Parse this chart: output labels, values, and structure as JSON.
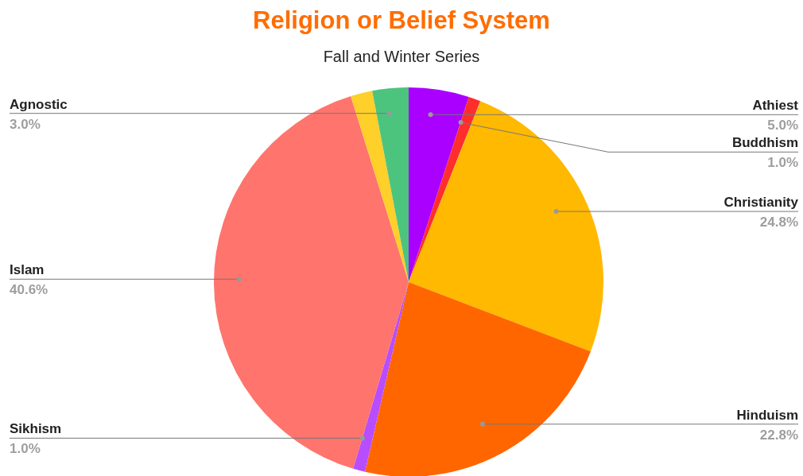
{
  "chart_data": {
    "type": "pie",
    "title": "Religion or Belief System",
    "subtitle": "Fall and Winter Series",
    "categories": [
      "Athiest",
      "Buddhism",
      "Christianity",
      "Hinduism",
      "Sikhism",
      "Islam",
      null,
      "Agnostic"
    ],
    "values": [
      5.0,
      1.0,
      24.8,
      22.8,
      1.0,
      40.6,
      1.8,
      3.0
    ],
    "colors": [
      "#aa00ff",
      "#ff2d2d",
      "#ffb900",
      "#ff6600",
      "#b84dff",
      "#ff746c",
      "#ffcf2a",
      "#4cc47e"
    ],
    "value_labels": [
      "5.0%",
      "1.0%",
      "24.8%",
      "22.8%",
      "1.0%",
      "40.6%",
      null,
      "3.0%"
    ]
  }
}
